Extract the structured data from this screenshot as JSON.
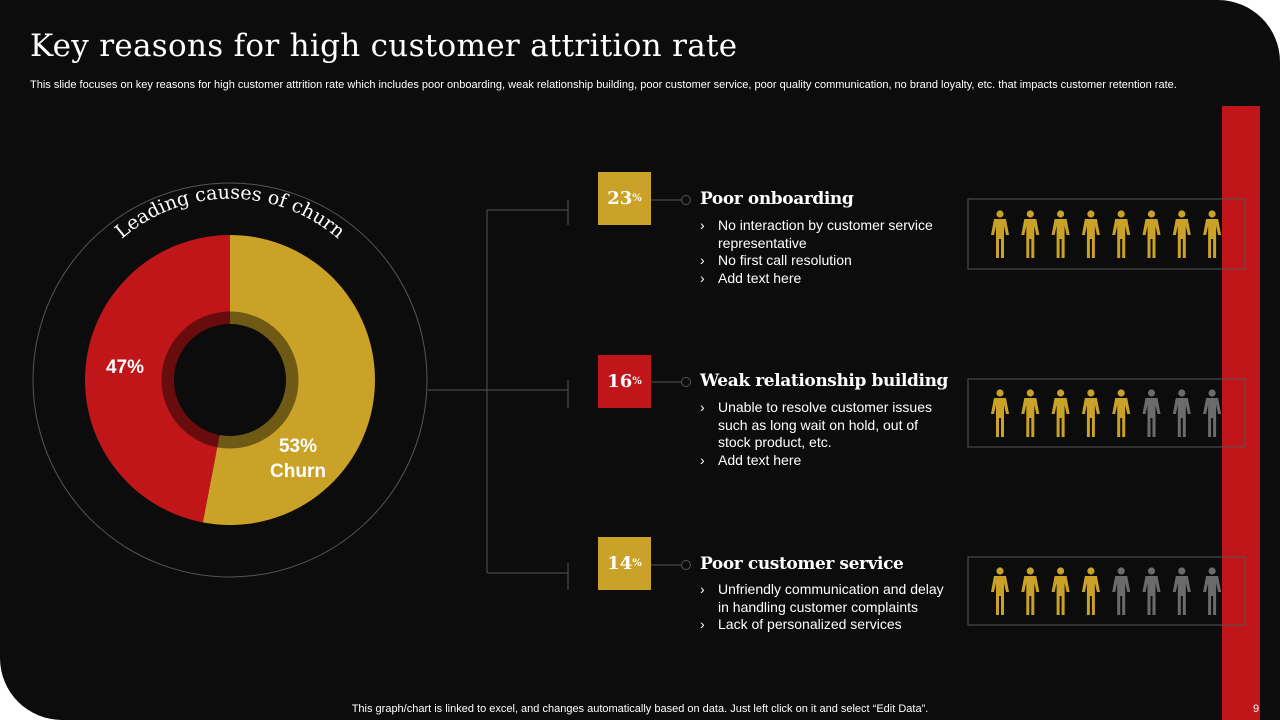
{
  "title": "Key reasons for high customer attrition rate",
  "subtitle": "This slide focuses on key reasons for high customer attrition rate which includes poor onboarding, weak relationship building, poor customer service, poor quality communication, no brand loyalty,  etc. that impacts customer retention rate.",
  "chart_data": {
    "type": "pie",
    "title": "Leading causes of churn",
    "categories": [
      "Churn",
      null
    ],
    "values": [
      53,
      47
    ],
    "value_labels": [
      "53%",
      "47%"
    ],
    "colors": [
      "#c9a227",
      "#c0161a"
    ],
    "donut": true
  },
  "reasons": [
    {
      "percent": 23,
      "unit": "%",
      "color": "#c9a227",
      "heading": "Poor onboarding",
      "bullets": [
        "No interaction by customer service representative",
        "No first call resolution",
        "Add text here"
      ],
      "icons_highlighted": 8,
      "icons_total": 8
    },
    {
      "percent": 16,
      "unit": "%",
      "color": "#c0161a",
      "heading": "Weak relationship building",
      "bullets": [
        "Unable to resolve customer issues such as long wait on hold, out of stock product, etc.",
        "Add text here"
      ],
      "icons_highlighted": 5,
      "icons_total": 8
    },
    {
      "percent": 14,
      "unit": "%",
      "color": "#c9a227",
      "heading": "Poor customer service",
      "bullets": [
        "Unfriendly communication and delay in handling  customer complaints",
        "Lack of personalized services"
      ],
      "icons_highlighted": 4,
      "icons_total": 8
    }
  ],
  "footer": "This graph/chart is linked to excel,  and changes automatically based on data. Just left click on it and select “Edit Data”.",
  "page_number": "9"
}
